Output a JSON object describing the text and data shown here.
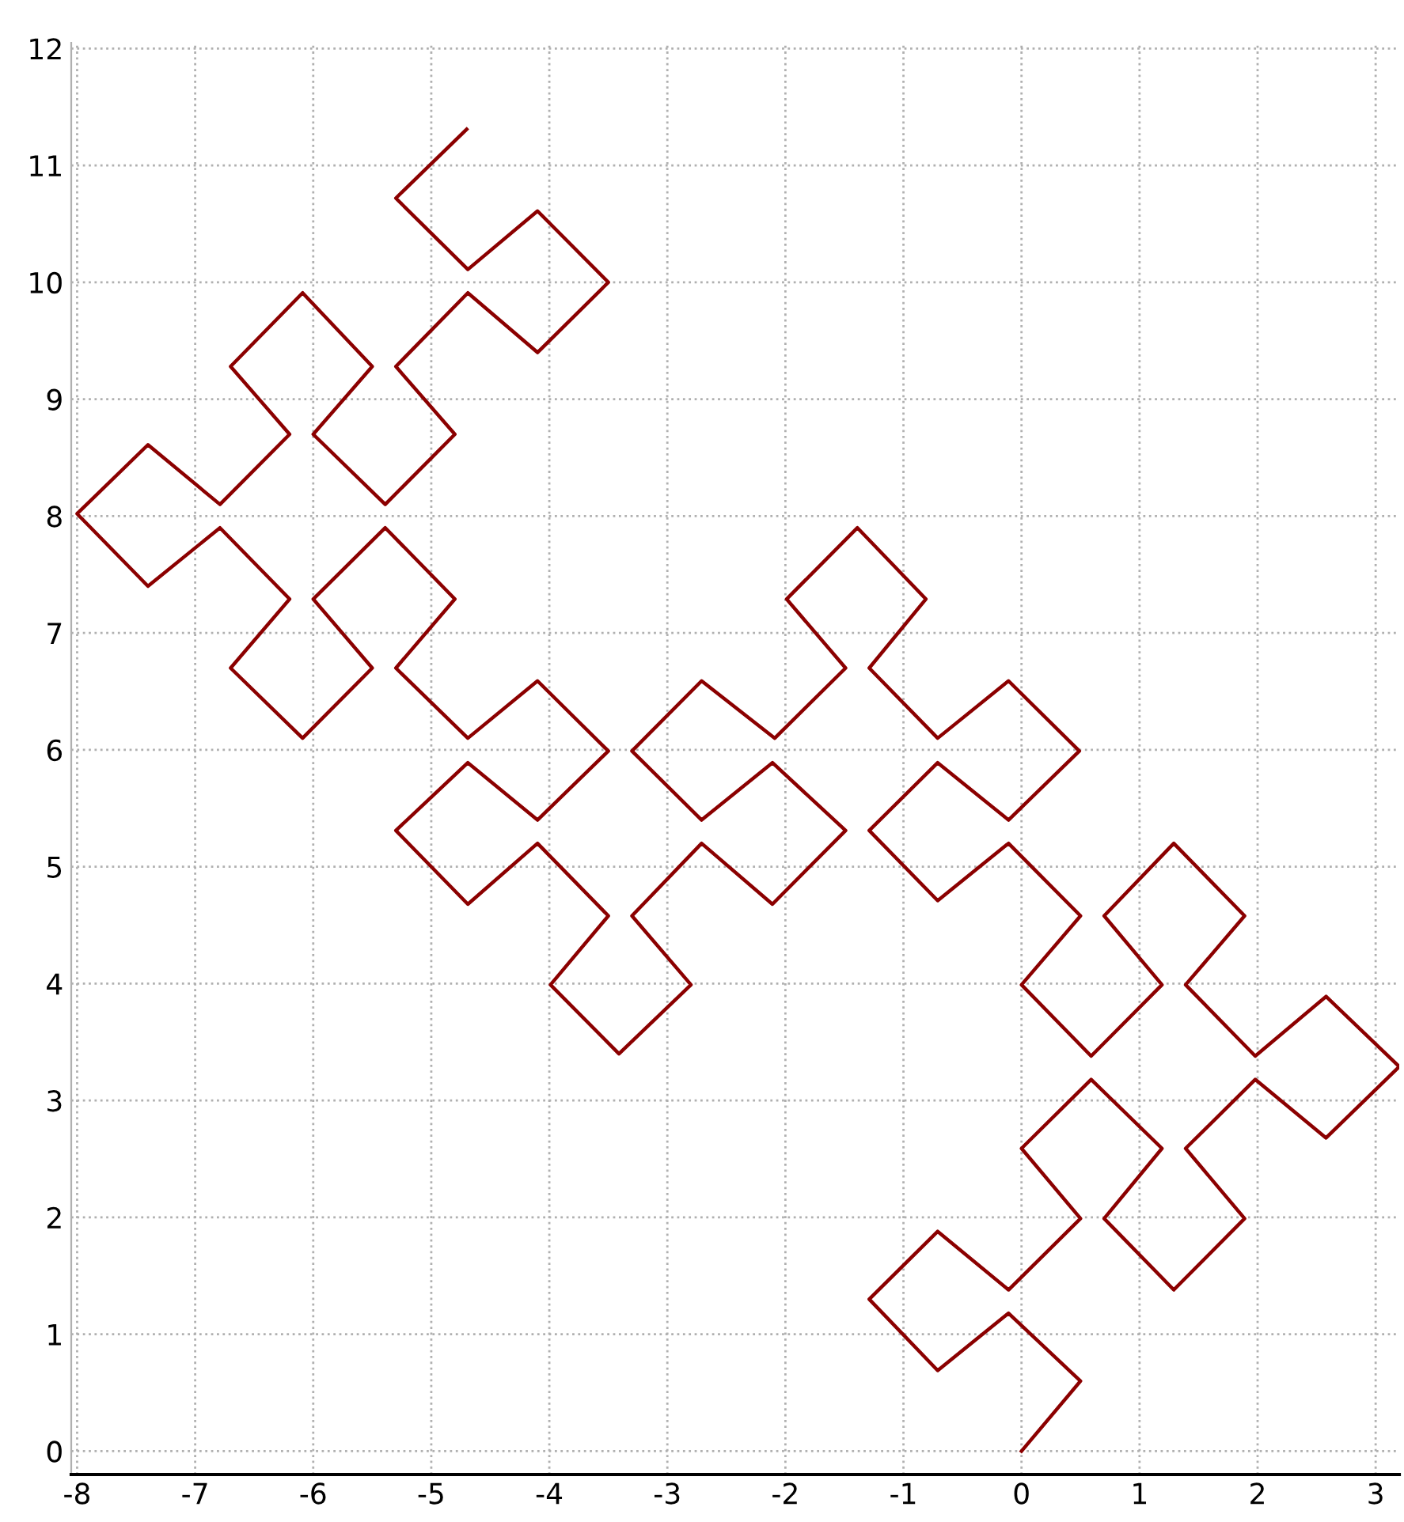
{
  "chart_data": {
    "type": "line",
    "x": [
      0,
      0.5,
      -0.11,
      -0.71,
      -1.29,
      -0.71,
      -0.11,
      0.5,
      0,
      0.59,
      1.19,
      0.7,
      1.29,
      1.89,
      1.39,
      1.98,
      2.58,
      3.2,
      2.58,
      1.98,
      1.39,
      1.89,
      1.29,
      0.7,
      1.19,
      0.59,
      0,
      0.5,
      -0.11,
      -0.71,
      -1.29,
      -0.71,
      -0.11,
      0.49,
      -0.11,
      -0.71,
      -1.29,
      -0.81,
      -1.39,
      -1.99,
      -1.49,
      -2.09,
      -2.71,
      -3.3,
      -2.71,
      -2.11,
      -1.49,
      -2.11,
      -2.71,
      -3.3,
      -2.8,
      -3.41,
      -3.99,
      -3.5,
      -4.1,
      -4.69,
      -5.3,
      -4.69,
      -4.1,
      -3.5,
      -4.1,
      -4.69,
      -5.3,
      -4.8,
      -5.39,
      -6.0,
      -5.5,
      -6.09,
      -6.7,
      -6.2,
      -6.79,
      -7.4,
      -8.0,
      -7.4,
      -6.79,
      -6.2,
      -6.7,
      -6.09,
      -5.5,
      -6.0,
      -5.39,
      -4.8,
      -5.3,
      -4.69,
      -4.1,
      -3.5,
      -4.1,
      -4.69,
      -5.3,
      -4.7
    ],
    "series": [
      {
        "color": "#8b0000",
        "values": [
          0,
          0.6,
          1.18,
          0.69,
          1.3,
          1.88,
          1.38,
          1.99,
          2.59,
          3.18,
          2.59,
          1.99,
          1.38,
          1.99,
          2.59,
          3.18,
          2.68,
          3.29,
          3.89,
          3.38,
          3.99,
          4.58,
          5.2,
          4.58,
          3.99,
          3.38,
          3.99,
          4.58,
          5.2,
          4.71,
          5.31,
          5.89,
          5.4,
          5.99,
          6.59,
          6.1,
          6.7,
          7.29,
          7.9,
          7.29,
          6.7,
          6.1,
          6.59,
          5.99,
          5.4,
          5.89,
          5.31,
          4.68,
          5.2,
          4.58,
          3.99,
          3.4,
          3.99,
          4.58,
          5.2,
          4.68,
          5.31,
          5.89,
          5.4,
          5.99,
          6.59,
          6.1,
          6.7,
          7.29,
          7.9,
          7.29,
          6.7,
          6.1,
          6.7,
          7.29,
          7.9,
          7.4,
          8.02,
          8.61,
          8.1,
          8.7,
          9.28,
          9.91,
          9.28,
          8.7,
          8.1,
          8.7,
          9.28,
          9.91,
          9.4,
          10.0,
          10.61,
          10.11,
          10.72,
          11.31
        ]
      }
    ],
    "xlim": [
      -8.05,
      3.2
    ],
    "ylim": [
      -0.2,
      12.05
    ],
    "xticks": [
      -8,
      -7,
      -6,
      -5,
      -4,
      -3,
      -2,
      -1,
      0,
      1,
      2,
      3
    ],
    "yticks": [
      0,
      1,
      2,
      3,
      4,
      5,
      6,
      7,
      8,
      9,
      10,
      11,
      12
    ],
    "grid": true
  }
}
